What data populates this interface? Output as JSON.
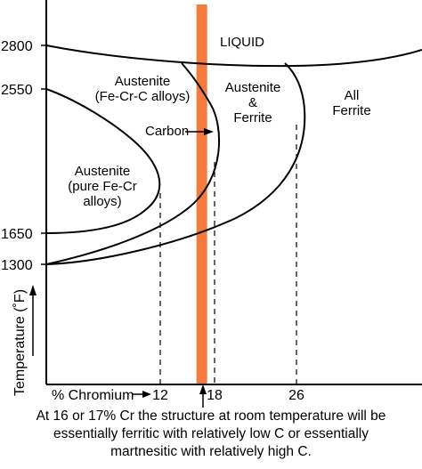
{
  "chart_data": {
    "type": "phase-diagram",
    "title": "",
    "xlabel": "% Chromium",
    "ylabel": "Temperature (˚F)",
    "y_ticks": [
      {
        "value": 2800,
        "label": "2800"
      },
      {
        "value": 2550,
        "label": "2550"
      },
      {
        "value": 1650,
        "label": "1650"
      },
      {
        "value": 1300,
        "label": "1300"
      }
    ],
    "x_ticks": [
      {
        "value": 12,
        "label": "12"
      },
      {
        "value": 18,
        "label": "18"
      },
      {
        "value": 26,
        "label": "26"
      }
    ],
    "highlight_band": {
      "x_from": 16,
      "x_to": 17,
      "color": "#f47b3b"
    },
    "boundaries": [
      {
        "name": "liquidus",
        "points": [
          [
            0,
            2800
          ],
          [
            16,
            2700
          ],
          [
            26,
            2700
          ],
          [
            40,
            2780
          ]
        ]
      },
      {
        "name": "austenite pure Fe-Cr",
        "points": [
          [
            0,
            1650
          ],
          [
            6,
            1700
          ],
          [
            11,
            1900
          ],
          [
            12,
            2200
          ],
          [
            9,
            2400
          ],
          [
            0,
            2550
          ]
        ]
      },
      {
        "name": "austenite Fe-Cr-C",
        "points": [
          [
            0,
            1300
          ],
          [
            10,
            1500
          ],
          [
            18,
            2150
          ],
          [
            17,
            2600
          ],
          [
            14,
            2800
          ]
        ]
      },
      {
        "name": "austenite + ferrite",
        "points": [
          [
            0,
            1300
          ],
          [
            12,
            1450
          ],
          [
            22,
            1800
          ],
          [
            26,
            2300
          ],
          [
            24,
            2700
          ]
        ]
      }
    ],
    "regions": [
      {
        "id": "liquid",
        "lines": [
          "LIQUID"
        ]
      },
      {
        "id": "aus_fecrc",
        "lines": [
          "Austenite",
          "(Fe-Cr-C alloys)"
        ]
      },
      {
        "id": "aus_ferrite",
        "lines": [
          "Austenite",
          "&",
          "Ferrite"
        ]
      },
      {
        "id": "all_ferrite",
        "lines": [
          "All",
          "Ferrite"
        ]
      },
      {
        "id": "aus_pure",
        "lines": [
          "Austenite",
          "(pure Fe-Cr",
          "alloys)"
        ]
      }
    ],
    "annotation": {
      "label": "Carbon"
    },
    "grid": false
  },
  "caption": [
    "At 16 or 17% Cr the structure at room temperature will be",
    "essentially ferritic with relatively low C or essentially",
    "martnesitic with relatively high C."
  ],
  "colors": {
    "axis": "#000000",
    "band": "#f47b3b",
    "curve": "#000000"
  }
}
